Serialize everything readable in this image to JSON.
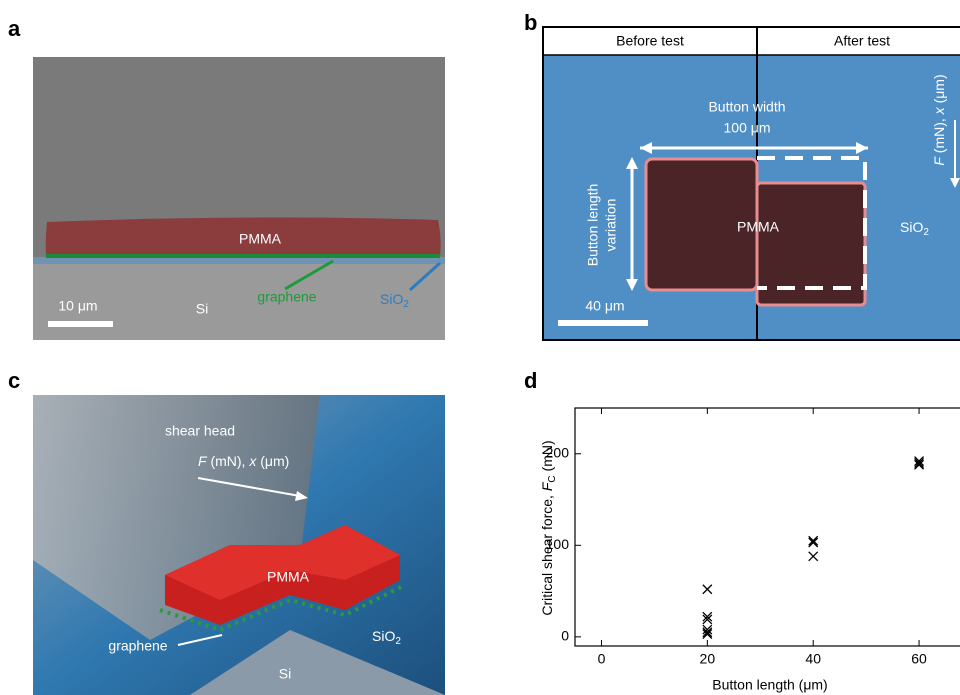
{
  "panels": {
    "a": {
      "letter": "a",
      "pmma": "PMMA",
      "graphene": "graphene",
      "sio2": {
        "base": "SiO",
        "sub": "2"
      },
      "scale": "10 μm",
      "si": "Si"
    },
    "b": {
      "letter": "b",
      "before": "Before test",
      "after": "After test",
      "width": "Button width",
      "width_value": "100 μm",
      "length": [
        "Button length",
        "variation"
      ],
      "pmma": "PMMA",
      "sio2": {
        "base": "SiO",
        "sub": "2"
      },
      "scale": "40 μm",
      "force": {
        "f": "F",
        "mid": " (mN), ",
        "x": "x",
        "end": " (μm)"
      }
    },
    "c": {
      "letter": "c",
      "head": "shear head",
      "force": {
        "f": "F",
        "mid": " (mN), ",
        "x": "x",
        "end": " (μm)"
      },
      "pmma": "PMMA",
      "graphene": "graphene",
      "sio2": {
        "base": "SiO",
        "sub": "2"
      },
      "si": "Si"
    },
    "d": {
      "letter": "d"
    }
  },
  "chart_data": {
    "type": "scatter",
    "xlabel": "Button length (μm)",
    "ylabel": {
      "text": "Critical shear force, ",
      "f": "F",
      "sub": "C",
      "unit": " (mN)"
    },
    "x": [
      20,
      20,
      20,
      20,
      20,
      20,
      40,
      40,
      40,
      60,
      60,
      60
    ],
    "values": [
      52,
      22,
      19,
      8,
      5,
      3,
      105,
      103,
      88,
      192,
      190,
      188
    ],
    "color": "#000000",
    "xlim": [
      -5,
      70
    ],
    "xticks": [
      0,
      20,
      40,
      60
    ],
    "ylim": [
      -10,
      250
    ],
    "yticks": [
      0,
      100,
      200
    ]
  }
}
